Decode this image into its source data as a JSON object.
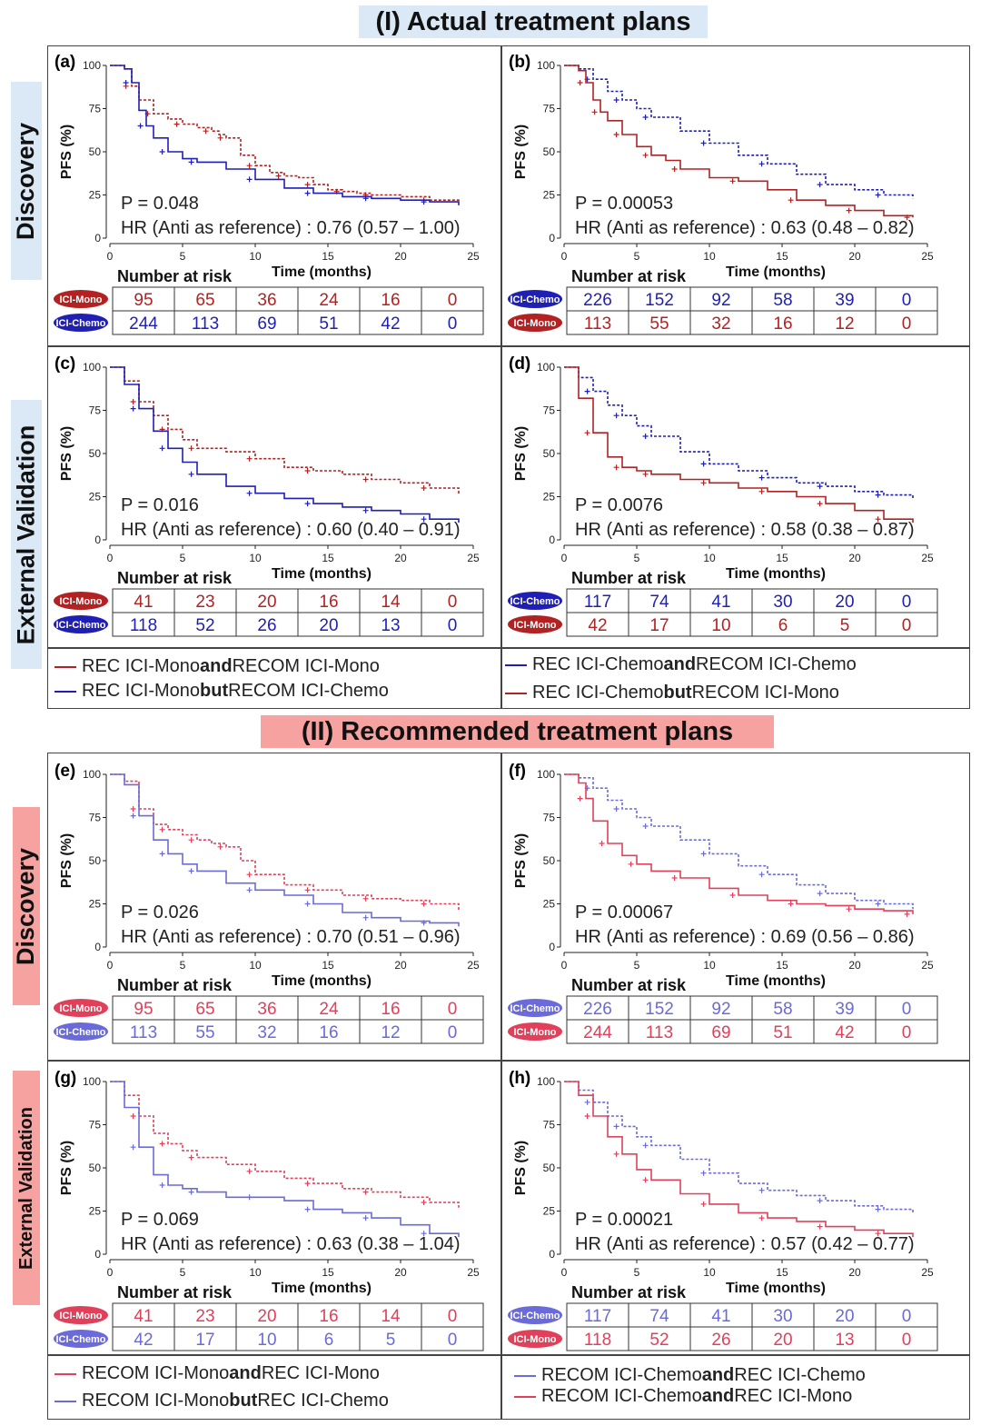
{
  "sections": {
    "actual": "(I) Actual treatment plans",
    "recommended": "(II) Recommended treatment plans"
  },
  "side_labels": {
    "disc1": "Discovery",
    "ext1": "External Validation",
    "disc2": "Discovery",
    "ext2": "External Validation"
  },
  "colors": {
    "darkred": "#b22222",
    "darkblue": "#1f1fb4",
    "lightred": "#e0405a",
    "lightblue": "#6a6ad8",
    "hl_blue": "#dbe8f5",
    "hl_red": "#f6a2a0"
  },
  "axis": {
    "ylabel": "PFS (%)",
    "xlabel": "Time (months)",
    "risk_title": "Number at risk",
    "xticks": [
      "0",
      "5",
      "10",
      "15",
      "20",
      "25"
    ],
    "yticks": [
      "0",
      "25",
      "50",
      "75",
      "100"
    ]
  },
  "legends": {
    "left1": [
      {
        "a": "REC ICI-Mono ",
        "b": "and",
        "c": " RECOM ICI-Mono"
      },
      {
        "a": "REC ICI-Mono ",
        "b": "but",
        "c": " RECOM ICI-Chemo"
      }
    ],
    "right1": [
      {
        "a": "REC ICI-Chemo ",
        "b": "and",
        "c": " RECOM ICI-Chemo"
      },
      {
        "a": "REC ICI-Chemo ",
        "b": "but",
        "c": " RECOM ICI-Mono"
      }
    ],
    "left2": [
      {
        "a": "RECOM ICI-Mono ",
        "b": "and",
        "c": " REC ICI-Mono"
      },
      {
        "a": "RECOM ICI-Mono ",
        "b": "but",
        "c": " REC ICI-Chemo"
      }
    ],
    "right2": [
      {
        "a": "RECOM ICI-Chemo ",
        "b": "and",
        "c": " REC ICI-Chemo"
      },
      {
        "a": "RECOM ICI-Chemo ",
        "b": "and",
        "c": " REC ICI-Mono"
      }
    ]
  },
  "chart_data": [
    {
      "id": "a",
      "label": "(a)",
      "type": "line",
      "xlabel": "Time (months)",
      "ylabel": "PFS (%)",
      "xlim": [
        0,
        25
      ],
      "ylim": [
        0,
        100
      ],
      "p": "P = 0.048",
      "hr": "HR (Anti as reference) : 0.76 (0.57 – 1.00)",
      "series": [
        {
          "name": "REC ICI-Mono and RECOM ICI-Mono",
          "color": "darkred",
          "dash": true,
          "risk": [
            95,
            65,
            36,
            24,
            16,
            0
          ],
          "badge": "ICI-Mono",
          "x": [
            0,
            1,
            1.5,
            2,
            3,
            4,
            5,
            6,
            7,
            7.5,
            8,
            9,
            10,
            11,
            12,
            13,
            14,
            15,
            16,
            17,
            18,
            20,
            22,
            24
          ],
          "y": [
            100,
            98,
            88,
            80,
            72,
            69,
            66,
            64,
            62,
            60,
            58,
            48,
            42,
            38,
            36,
            35,
            31,
            28,
            27,
            26,
            25,
            24,
            22,
            21
          ]
        },
        {
          "name": "REC ICI-Mono but RECOM ICI-Chemo",
          "color": "darkblue",
          "dash": false,
          "risk": [
            244,
            113,
            69,
            51,
            42,
            0
          ],
          "badge": "ICI-Chemo",
          "x": [
            0,
            1,
            1.5,
            2,
            2.5,
            3,
            4,
            5,
            6,
            8,
            10,
            12,
            14,
            16,
            18,
            20,
            22,
            24
          ],
          "y": [
            100,
            98,
            90,
            74,
            65,
            58,
            50,
            46,
            44,
            40,
            34,
            29,
            26,
            24,
            23,
            22,
            21,
            19
          ]
        }
      ]
    },
    {
      "id": "b",
      "label": "(b)",
      "type": "line",
      "xlabel": "Time (months)",
      "ylabel": "PFS (%)",
      "xlim": [
        0,
        25
      ],
      "ylim": [
        0,
        100
      ],
      "p": "P = 0.00053",
      "hr": "HR (Anti as reference) : 0.63 (0.48 – 0.82)",
      "series": [
        {
          "name": "REC ICI-Chemo and RECOM ICI-Chemo",
          "color": "darkblue",
          "dash": true,
          "risk": [
            226,
            152,
            92,
            58,
            39,
            0
          ],
          "badge": "ICI-Chemo",
          "x": [
            0,
            1,
            2,
            3,
            4,
            5,
            6,
            8,
            10,
            12,
            14,
            16,
            18,
            20,
            22,
            24
          ],
          "y": [
            100,
            98,
            92,
            85,
            80,
            75,
            70,
            62,
            55,
            48,
            43,
            37,
            31,
            28,
            25,
            23
          ]
        },
        {
          "name": "REC ICI-Chemo but RECOM ICI-Mono",
          "color": "darkred",
          "dash": false,
          "risk": [
            113,
            55,
            32,
            16,
            12,
            0
          ],
          "badge": "ICI-Mono",
          "x": [
            0,
            1,
            1.5,
            2,
            2.5,
            3,
            4,
            5,
            6,
            7,
            8,
            10,
            12,
            14,
            16,
            18,
            20,
            22,
            24
          ],
          "y": [
            100,
            97,
            90,
            80,
            73,
            68,
            60,
            53,
            48,
            45,
            40,
            35,
            33,
            28,
            22,
            19,
            16,
            13,
            12
          ]
        }
      ]
    },
    {
      "id": "c",
      "label": "(c)",
      "type": "line",
      "xlabel": "Time (months)",
      "ylabel": "PFS (%)",
      "xlim": [
        0,
        25
      ],
      "ylim": [
        0,
        100
      ],
      "p": "P = 0.016",
      "hr": "HR (Anti as reference) : 0.60 (0.40 – 0.91)",
      "series": [
        {
          "name": "REC ICI-Mono and RECOM ICI-Mono",
          "color": "darkred",
          "dash": true,
          "risk": [
            41,
            23,
            20,
            16,
            14,
            0
          ],
          "badge": "ICI-Mono",
          "x": [
            0,
            1,
            2,
            3,
            4,
            5,
            6,
            8,
            10,
            12,
            14,
            16,
            18,
            20,
            22,
            24
          ],
          "y": [
            100,
            92,
            80,
            72,
            64,
            58,
            53,
            51,
            47,
            42,
            40,
            38,
            35,
            33,
            30,
            26
          ]
        },
        {
          "name": "REC ICI-Mono but RECOM ICI-Chemo",
          "color": "darkblue",
          "dash": false,
          "risk": [
            118,
            52,
            26,
            20,
            13,
            0
          ],
          "badge": "ICI-Chemo",
          "x": [
            0,
            1,
            2,
            3,
            4,
            5,
            6,
            8,
            10,
            12,
            14,
            16,
            18,
            20,
            22,
            24
          ],
          "y": [
            100,
            90,
            76,
            63,
            53,
            45,
            38,
            31,
            27,
            24,
            21,
            19,
            17,
            15,
            12,
            10
          ]
        }
      ]
    },
    {
      "id": "d",
      "label": "(d)",
      "type": "line",
      "xlabel": "Time (months)",
      "ylabel": "PFS (%)",
      "xlim": [
        0,
        25
      ],
      "ylim": [
        0,
        100
      ],
      "p": "P = 0.0076",
      "hr": "HR (Anti as reference) : 0.58 (0.38 – 0.87)",
      "series": [
        {
          "name": "REC ICI-Chemo and RECOM ICI-Chemo",
          "color": "darkblue",
          "dash": true,
          "risk": [
            117,
            74,
            41,
            30,
            20,
            0
          ],
          "badge": "ICI-Chemo",
          "x": [
            0,
            1,
            2,
            3,
            4,
            5,
            6,
            8,
            10,
            12,
            14,
            16,
            18,
            20,
            22,
            24
          ],
          "y": [
            100,
            94,
            86,
            78,
            72,
            66,
            60,
            51,
            44,
            40,
            36,
            33,
            31,
            28,
            26,
            24
          ]
        },
        {
          "name": "REC ICI-Chemo but RECOM ICI-Mono",
          "color": "darkred",
          "dash": false,
          "risk": [
            42,
            17,
            10,
            6,
            5,
            0
          ],
          "badge": "ICI-Mono",
          "x": [
            0,
            1,
            2,
            3,
            4,
            5,
            6,
            8,
            10,
            12,
            14,
            16,
            18,
            20,
            22,
            24
          ],
          "y": [
            100,
            82,
            62,
            48,
            42,
            40,
            38,
            35,
            33,
            30,
            28,
            25,
            21,
            17,
            12,
            10
          ]
        }
      ]
    },
    {
      "id": "e",
      "label": "(e)",
      "type": "line",
      "xlabel": "Time (months)",
      "ylabel": "PFS (%)",
      "xlim": [
        0,
        25
      ],
      "ylim": [
        0,
        100
      ],
      "p": "P = 0.026",
      "hr": "HR (Anti as reference) : 0.70 (0.51 – 0.96)",
      "series": [
        {
          "name": "RECOM ICI-Mono and REC ICI-Mono",
          "color": "lightred",
          "dash": true,
          "risk": [
            95,
            65,
            36,
            24,
            16,
            0
          ],
          "badge": "ICI-Mono",
          "x": [
            0,
            1,
            2,
            3,
            4,
            5,
            6,
            7,
            8,
            9,
            10,
            12,
            14,
            16,
            18,
            20,
            22,
            24
          ],
          "y": [
            100,
            96,
            80,
            71,
            68,
            65,
            62,
            60,
            58,
            50,
            42,
            36,
            33,
            30,
            28,
            27,
            25,
            21
          ]
        },
        {
          "name": "RECOM ICI-Mono but REC ICI-Chemo",
          "color": "lightblue",
          "dash": false,
          "risk": [
            113,
            55,
            32,
            16,
            12,
            0
          ],
          "badge": "ICI-Chemo",
          "x": [
            0,
            1,
            2,
            3,
            4,
            5,
            6,
            8,
            10,
            12,
            14,
            16,
            18,
            20,
            22,
            24
          ],
          "y": [
            100,
            94,
            76,
            62,
            54,
            48,
            44,
            37,
            33,
            30,
            25,
            20,
            17,
            15,
            14,
            12
          ]
        }
      ]
    },
    {
      "id": "f",
      "label": "(f)",
      "type": "line",
      "xlabel": "Time (months)",
      "ylabel": "PFS (%)",
      "xlim": [
        0,
        25
      ],
      "ylim": [
        0,
        100
      ],
      "p": "P = 0.00067",
      "hr": "HR (Anti as reference) : 0.69 (0.56 – 0.86)",
      "series": [
        {
          "name": "RECOM ICI-Chemo and REC ICI-Chemo",
          "color": "lightblue",
          "dash": true,
          "risk": [
            226,
            152,
            92,
            58,
            39,
            0
          ],
          "badge": "ICI-Chemo",
          "x": [
            0,
            1,
            2,
            3,
            4,
            5,
            6,
            8,
            10,
            12,
            14,
            16,
            18,
            20,
            22,
            24
          ],
          "y": [
            100,
            98,
            92,
            85,
            80,
            75,
            70,
            62,
            54,
            47,
            42,
            36,
            31,
            27,
            25,
            22
          ]
        },
        {
          "name": "RECOM ICI-Chemo and REC ICI-Mono",
          "color": "lightred",
          "dash": false,
          "risk": [
            244,
            113,
            69,
            51,
            42,
            0
          ],
          "badge": "ICI-Mono",
          "x": [
            0,
            1,
            1.5,
            2,
            3,
            4,
            5,
            6,
            8,
            10,
            12,
            14,
            16,
            18,
            20,
            22,
            24
          ],
          "y": [
            100,
            95,
            86,
            73,
            60,
            53,
            48,
            44,
            40,
            34,
            30,
            27,
            25,
            24,
            22,
            21,
            19
          ]
        }
      ]
    },
    {
      "id": "g",
      "label": "(g)",
      "type": "line",
      "xlabel": "Time (months)",
      "ylabel": "PFS (%)",
      "xlim": [
        0,
        25
      ],
      "ylim": [
        0,
        100
      ],
      "p": "P = 0.069",
      "hr": "HR (Anti as reference) : 0.63 (0.38 – 1.04)",
      "series": [
        {
          "name": "RECOM ICI-Mono and REC ICI-Mono",
          "color": "lightred",
          "dash": true,
          "risk": [
            41,
            23,
            20,
            16,
            14,
            0
          ],
          "badge": "ICI-Mono",
          "x": [
            0,
            1,
            2,
            3,
            4,
            5,
            6,
            8,
            10,
            12,
            14,
            16,
            18,
            20,
            22,
            24
          ],
          "y": [
            100,
            92,
            80,
            70,
            64,
            60,
            56,
            52,
            48,
            44,
            41,
            38,
            36,
            33,
            30,
            27
          ]
        },
        {
          "name": "RECOM ICI-Mono but REC ICI-Chemo",
          "color": "lightblue",
          "dash": false,
          "risk": [
            42,
            17,
            10,
            6,
            5,
            0
          ],
          "badge": "ICI-Chemo",
          "x": [
            0,
            1,
            2,
            3,
            4,
            5,
            6,
            8,
            10,
            12,
            14,
            16,
            18,
            20,
            22,
            24
          ],
          "y": [
            100,
            85,
            62,
            46,
            40,
            38,
            36,
            33,
            33,
            31,
            26,
            24,
            21,
            17,
            12,
            10
          ]
        }
      ]
    },
    {
      "id": "h",
      "label": "(h)",
      "type": "line",
      "xlabel": "Time (months)",
      "ylabel": "PFS (%)",
      "xlim": [
        0,
        25
      ],
      "ylim": [
        0,
        100
      ],
      "p": "P = 0.00021",
      "hr": "HR (Anti as reference) : 0.57 (0.42 – 0.77)",
      "series": [
        {
          "name": "RECOM ICI-Chemo and REC ICI-Chemo",
          "color": "lightblue",
          "dash": true,
          "risk": [
            117,
            74,
            41,
            30,
            20,
            0
          ],
          "badge": "ICI-Chemo",
          "x": [
            0,
            1,
            2,
            3,
            4,
            5,
            6,
            8,
            10,
            12,
            14,
            16,
            18,
            20,
            22,
            24
          ],
          "y": [
            100,
            95,
            88,
            80,
            74,
            68,
            63,
            55,
            47,
            41,
            37,
            34,
            31,
            28,
            26,
            24
          ]
        },
        {
          "name": "RECOM ICI-Chemo and REC ICI-Mono",
          "color": "lightred",
          "dash": false,
          "risk": [
            118,
            52,
            26,
            20,
            13,
            0
          ],
          "badge": "ICI-Mono",
          "x": [
            0,
            1,
            2,
            3,
            4,
            5,
            6,
            8,
            10,
            12,
            14,
            16,
            18,
            20,
            22,
            24
          ],
          "y": [
            100,
            92,
            80,
            68,
            58,
            49,
            43,
            35,
            29,
            24,
            21,
            19,
            16,
            14,
            12,
            10
          ]
        }
      ]
    }
  ]
}
